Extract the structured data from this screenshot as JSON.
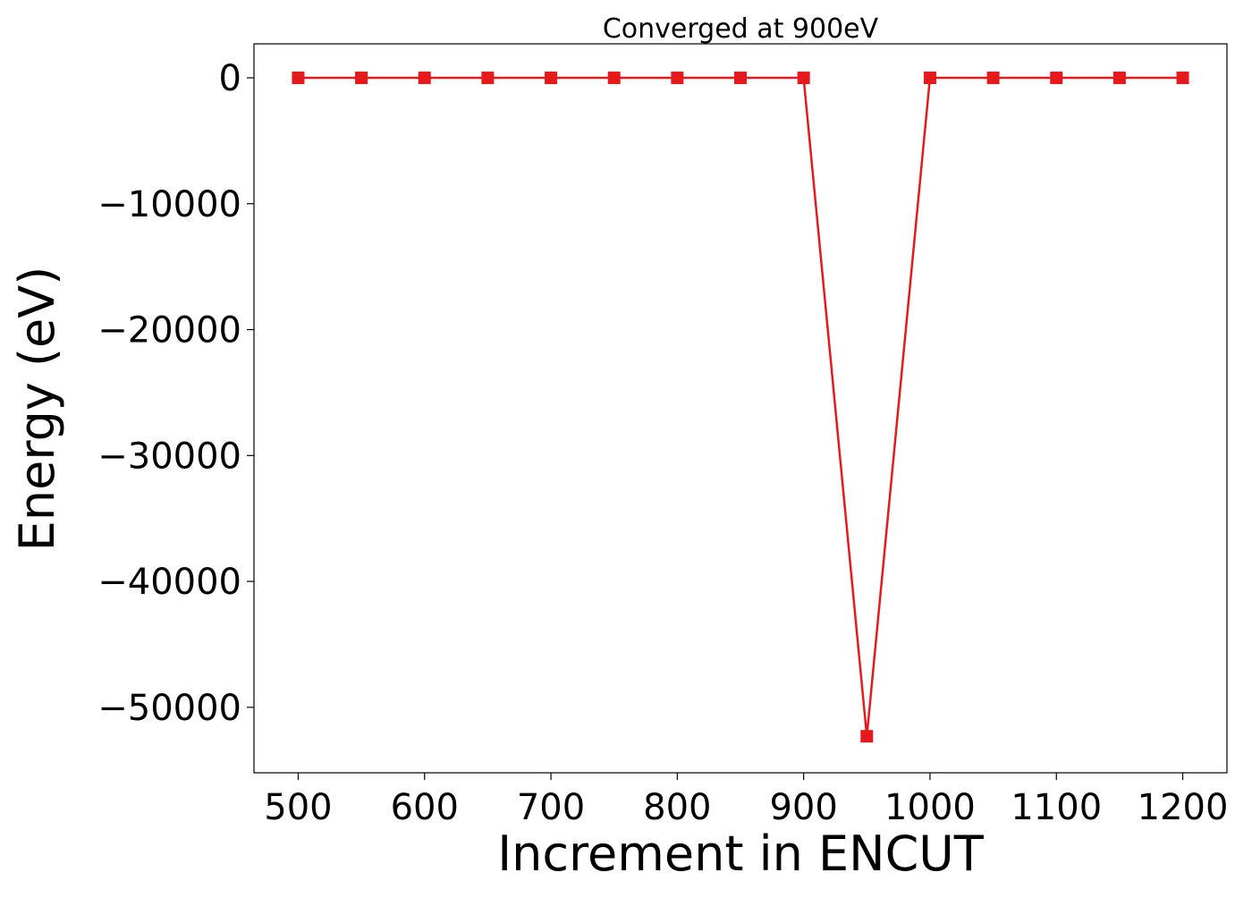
{
  "chart_data": {
    "type": "line",
    "title": "Converged at 900eV",
    "xlabel": "Increment in ENCUT",
    "ylabel": "Energy (eV)",
    "xlim": [
      465,
      1235
    ],
    "ylim": [
      -55200,
      2700
    ],
    "xticks": [
      500,
      600,
      700,
      800,
      900,
      1000,
      1100,
      1200
    ],
    "xtick_labels": [
      "500",
      "600",
      "700",
      "800",
      "900",
      "1000",
      "1100",
      "1200"
    ],
    "yticks": [
      0,
      -10000,
      -20000,
      -30000,
      -40000,
      -50000
    ],
    "ytick_labels": [
      "0",
      "−10000",
      "−20000",
      "−30000",
      "−40000",
      "−50000"
    ],
    "grid": false,
    "legend": "none",
    "series": [
      {
        "color": "#e41a1c",
        "marker": "square",
        "x": [
          500,
          550,
          600,
          650,
          700,
          750,
          800,
          850,
          900,
          950,
          1000,
          1050,
          1100,
          1150,
          1200
        ],
        "y": [
          -2,
          -2,
          -2,
          -2,
          -2,
          -2,
          -2,
          -2,
          -2,
          -52300,
          -2,
          -2,
          -2,
          -2,
          -2
        ]
      }
    ]
  }
}
